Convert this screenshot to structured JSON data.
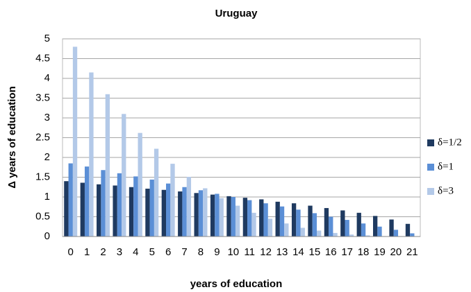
{
  "chart_data": {
    "type": "bar",
    "title": "Uruguay",
    "x_label": "years of education",
    "y_label": "Δ years of education",
    "categories": [
      "0",
      "1",
      "2",
      "3",
      "4",
      "5",
      "6",
      "7",
      "8",
      "9",
      "10",
      "11",
      "12",
      "13",
      "14",
      "15",
      "16",
      "17",
      "18",
      "19",
      "20",
      "21"
    ],
    "series": [
      {
        "name": "δ=1/2",
        "color": "#1f3a60",
        "values": [
          1.4,
          1.36,
          1.32,
          1.29,
          1.25,
          1.21,
          1.18,
          1.14,
          1.1,
          1.06,
          1.02,
          0.98,
          0.94,
          0.88,
          0.84,
          0.78,
          0.72,
          0.66,
          0.6,
          0.52,
          0.43,
          0.32
        ]
      },
      {
        "name": "δ=1",
        "color": "#5b8fd6",
        "values": [
          1.85,
          1.77,
          1.68,
          1.6,
          1.52,
          1.44,
          1.34,
          1.25,
          1.17,
          1.08,
          1.0,
          0.92,
          0.84,
          0.76,
          0.68,
          0.59,
          0.5,
          0.42,
          0.33,
          0.25,
          0.17,
          0.08
        ]
      },
      {
        "name": "δ=3",
        "color": "#b3c9e8",
        "values": [
          4.8,
          4.15,
          3.6,
          3.1,
          2.62,
          2.22,
          1.84,
          1.51,
          1.22,
          0.97,
          0.78,
          0.6,
          0.45,
          0.33,
          0.22,
          0.15,
          0.09,
          0.05,
          0.03,
          0.01,
          0.01,
          0
        ]
      }
    ],
    "ylim": [
      0,
      5
    ],
    "yticks": [
      0,
      0.5,
      1,
      1.5,
      2,
      2.5,
      3,
      3.5,
      4,
      4.5,
      5
    ],
    "grid": true,
    "legend": "right"
  }
}
